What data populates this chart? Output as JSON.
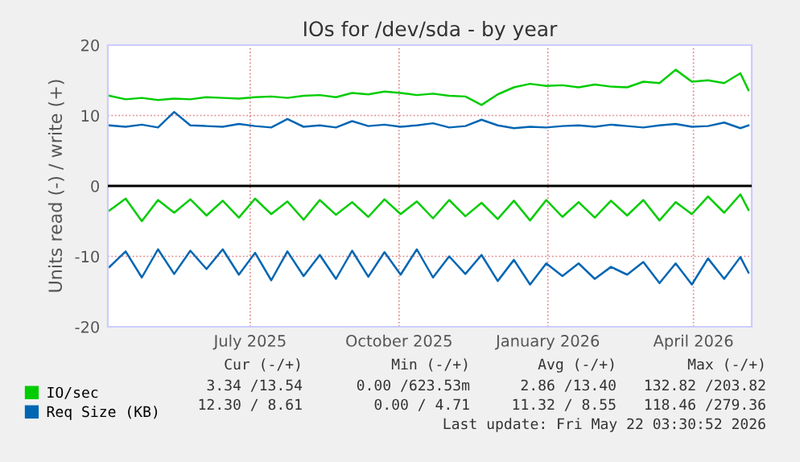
{
  "chart_data": {
    "type": "line",
    "title": "IOs for /dev/sda - by year",
    "ylabel": "Units read (-) / write (+)",
    "x": [
      "2025-04-20",
      "2025-04-30",
      "2025-05-10",
      "2025-05-20",
      "2025-05-30",
      "2025-06-09",
      "2025-06-19",
      "2025-06-29",
      "2025-07-09",
      "2025-07-19",
      "2025-07-29",
      "2025-08-08",
      "2025-08-18",
      "2025-08-28",
      "2025-09-07",
      "2025-09-17",
      "2025-09-27",
      "2025-10-07",
      "2025-10-17",
      "2025-10-27",
      "2025-11-06",
      "2025-11-16",
      "2025-11-26",
      "2025-12-06",
      "2025-12-16",
      "2025-12-26",
      "2026-01-05",
      "2026-01-15",
      "2026-01-25",
      "2026-02-04",
      "2026-02-14",
      "2026-02-24",
      "2026-03-06",
      "2026-03-16",
      "2026-03-26",
      "2026-04-05",
      "2026-04-15",
      "2026-04-25",
      "2026-05-05",
      "2026-05-15",
      "2026-05-20"
    ],
    "series": [
      {
        "name": "IO/sec",
        "color": "#00cc00",
        "values": [
          12.8,
          12.3,
          12.5,
          12.2,
          12.4,
          12.3,
          12.6,
          12.5,
          12.4,
          12.6,
          12.7,
          12.5,
          12.8,
          12.9,
          12.6,
          13.2,
          13.0,
          13.4,
          13.2,
          12.9,
          13.1,
          12.8,
          12.7,
          11.5,
          13.0,
          14.0,
          14.5,
          14.2,
          14.3,
          14.0,
          14.4,
          14.1,
          14.0,
          14.8,
          14.6,
          16.5,
          14.8,
          15.0,
          14.6,
          16.0,
          13.6
        ]
      },
      {
        "color": "#00cc00",
        "values": [
          -3.5,
          -1.8,
          -5.0,
          -2.0,
          -3.8,
          -1.9,
          -4.2,
          -2.1,
          -4.5,
          -1.8,
          -4.0,
          -2.2,
          -4.8,
          -2.0,
          -4.1,
          -2.3,
          -4.4,
          -1.9,
          -4.0,
          -2.2,
          -4.6,
          -2.0,
          -4.3,
          -2.4,
          -4.7,
          -2.1,
          -4.9,
          -2.0,
          -4.4,
          -2.3,
          -4.5,
          -2.1,
          -4.2,
          -2.0,
          -4.9,
          -2.3,
          -4.0,
          -1.5,
          -3.8,
          -1.2,
          -3.4
        ]
      },
      {
        "name": "Req Size (KB)",
        "color": "#0066b3",
        "values": [
          8.6,
          8.4,
          8.7,
          8.3,
          10.5,
          8.6,
          8.5,
          8.4,
          8.8,
          8.5,
          8.3,
          9.5,
          8.4,
          8.6,
          8.3,
          9.2,
          8.5,
          8.7,
          8.4,
          8.6,
          8.9,
          8.3,
          8.5,
          9.4,
          8.6,
          8.2,
          8.4,
          8.3,
          8.5,
          8.6,
          8.4,
          8.7,
          8.5,
          8.3,
          8.6,
          8.8,
          8.4,
          8.5,
          9.0,
          8.2,
          8.6
        ]
      },
      {
        "color": "#0066b3",
        "values": [
          -11.5,
          -9.3,
          -13.0,
          -9.0,
          -12.5,
          -9.2,
          -11.8,
          -9.0,
          -12.6,
          -9.5,
          -13.4,
          -9.3,
          -12.8,
          -9.8,
          -13.2,
          -9.2,
          -12.9,
          -9.4,
          -12.6,
          -9.0,
          -13.0,
          -10.0,
          -12.5,
          -9.8,
          -13.5,
          -10.5,
          -14.0,
          -11.0,
          -12.8,
          -11.0,
          -13.2,
          -11.5,
          -12.6,
          -10.8,
          -13.8,
          -11.0,
          -14.0,
          -10.3,
          -13.2,
          -10.1,
          -12.3
        ]
      }
    ],
    "xlim": [
      "2025-04-19",
      "2026-05-22"
    ],
    "xticks": [
      {
        "value": "2025-07-16",
        "label": "July 2025"
      },
      {
        "value": "2025-10-16",
        "label": "October 2025"
      },
      {
        "value": "2026-01-16",
        "label": "January 2026"
      },
      {
        "value": "2026-04-16",
        "label": "April 2026"
      }
    ],
    "ylim": [
      -20,
      20
    ],
    "yticks": [
      -20,
      -10,
      0,
      10,
      20
    ],
    "ref_lines": [
      {
        "axis": "y",
        "value": 0,
        "color": "#000000"
      }
    ],
    "grid": true,
    "legend": "bottom",
    "line_style": "solid",
    "marker": "none",
    "annotations": [
      "Cur (-/+)",
      "Min (-/+)",
      "Avg (-/+)",
      "Max (-/+)",
      "3.34 /13.54",
      "0.00 /623.53m",
      "2.86 /13.40",
      "132.82 /203.82",
      "12.30 / 8.61",
      "0.00 / 4.71",
      "11.32 / 8.55",
      "118.46 /279.36",
      "Last update: Fri May 22 03:30:52 2026"
    ]
  }
}
